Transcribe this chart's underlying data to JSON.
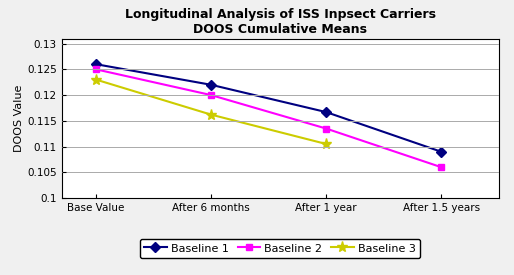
{
  "title_line1": "Longitudinal Analysis of ISS Inpsect Carriers",
  "title_line2": "DOOS Cumulative Means",
  "ylabel": "DOOS Value",
  "x_labels": [
    "Base Value",
    "After 6 months",
    "After 1 year",
    "After 1.5 years"
  ],
  "series": [
    {
      "name": "Baseline 1",
      "values": [
        0.126,
        0.122,
        0.1167,
        0.109
      ],
      "color": "#000080",
      "marker": "D",
      "markersize": 5
    },
    {
      "name": "Baseline 2",
      "values": [
        0.125,
        0.12,
        0.1135,
        0.106
      ],
      "color": "#FF00FF",
      "marker": "s",
      "markersize": 5
    },
    {
      "name": "Baseline 3",
      "values": [
        0.123,
        0.1162,
        0.1105,
        null
      ],
      "color": "#CCCC00",
      "marker": "*",
      "markersize": 8
    }
  ],
  "ylim": [
    0.1,
    0.131
  ],
  "yticks": [
    0.1,
    0.105,
    0.11,
    0.115,
    0.12,
    0.125,
    0.13
  ],
  "background_color": "#F0F0F0",
  "plot_bg_color": "#FFFFFF",
  "grid_color": "#AAAAAA",
  "title_fontsize": 9,
  "axis_label_fontsize": 8,
  "tick_fontsize": 7.5,
  "legend_fontsize": 8
}
